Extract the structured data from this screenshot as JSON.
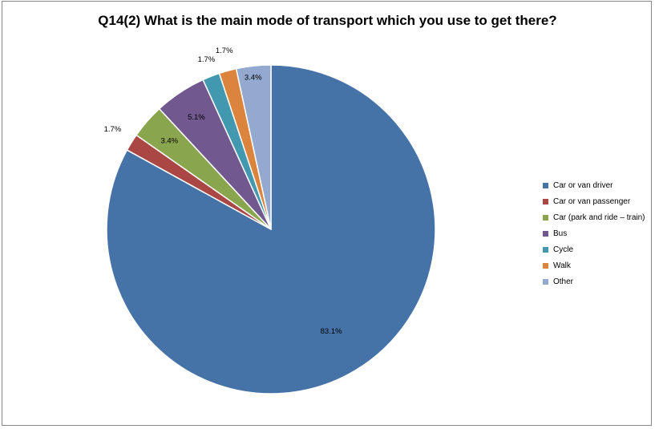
{
  "chart_data": {
    "type": "pie",
    "title": "Q14(2) What is the main mode of transport which you use to get there?",
    "categories": [
      "Car or van driver",
      "Car or van passenger",
      "Car (park and ride – train)",
      "Bus",
      "Cycle",
      "Walk",
      "Other"
    ],
    "values": [
      83.1,
      1.7,
      3.4,
      5.1,
      1.7,
      1.7,
      3.4
    ],
    "labels": [
      "83.1%",
      "1.7%",
      "3.4%",
      "5.1%",
      "1.7%",
      "1.7%",
      "3.4%"
    ],
    "colors": [
      "#4572A7",
      "#AA4643",
      "#89A54E",
      "#71588F",
      "#4198AF",
      "#DB843D",
      "#93A9CF"
    ],
    "direction": "clockwise from 12 o'clock",
    "legend": "right"
  }
}
